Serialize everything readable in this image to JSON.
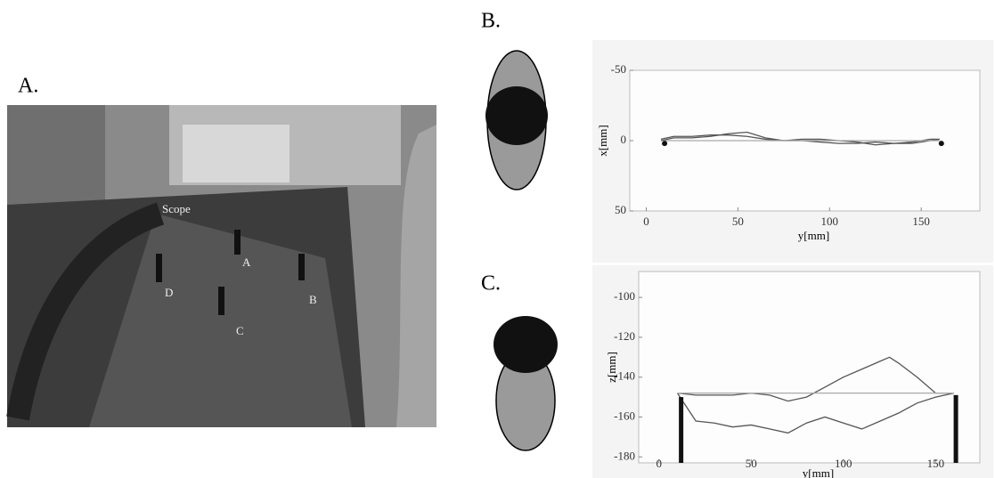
{
  "panels": {
    "a": "A.",
    "b": "B.",
    "c": "C."
  },
  "photo_labels": {
    "scope": "Scope",
    "a": "A",
    "b": "B",
    "c": "C",
    "d": "D"
  },
  "chart_data": [
    {
      "type": "line",
      "xlabel": "y[mm]",
      "ylabel": "x[mm]",
      "xlim": [
        -9,
        182
      ],
      "ylim": [
        50,
        -50
      ],
      "xticks": [
        0,
        50,
        100,
        150
      ],
      "yticks": [
        -50,
        0,
        50
      ],
      "series": [
        {
          "type": "line",
          "color": "#555555",
          "x": [
            8,
            15,
            25,
            35,
            45,
            55,
            65,
            75,
            85,
            95,
            105,
            115,
            125,
            135,
            145,
            155,
            160
          ],
          "values": [
            -1,
            -3,
            -3,
            -4,
            -4,
            -3,
            -1,
            0,
            0,
            1,
            2,
            2,
            1,
            2,
            1,
            -1,
            -1
          ]
        },
        {
          "type": "line",
          "color": "#555555",
          "x": [
            8,
            15,
            25,
            35,
            45,
            55,
            65,
            75,
            85,
            95,
            105,
            115,
            125,
            135,
            145,
            155,
            160
          ],
          "values": [
            0,
            -2,
            -2,
            -3,
            -5,
            -6,
            -2,
            0,
            -1,
            -1,
            0,
            1,
            3,
            2,
            2,
            0,
            -1
          ]
        },
        {
          "type": "line",
          "color": "#aaaaaa",
          "x": [
            10,
            160
          ],
          "values": [
            0,
            0
          ]
        },
        {
          "type": "scatter",
          "color": "#111111",
          "x": [
            10,
            161
          ],
          "values": [
            2,
            2
          ]
        }
      ]
    },
    {
      "type": "line",
      "xlabel": "y[mm]",
      "ylabel": "z[mm]",
      "xlim": [
        -11,
        174
      ],
      "ylim": [
        -183,
        -87
      ],
      "xticks": [
        0,
        50,
        100,
        150
      ],
      "yticks": [
        -100,
        -120,
        -140,
        -160,
        -180
      ],
      "series": [
        {
          "type": "line",
          "color": "#555555",
          "x": [
            10,
            20,
            30,
            40,
            50,
            60,
            70,
            80,
            90,
            100,
            110,
            120,
            125,
            130,
            140,
            150,
            160
          ],
          "values": [
            -148,
            -149,
            -149,
            -149,
            -148,
            -149,
            -152,
            -150,
            -145,
            -140,
            -136,
            -132,
            -130,
            -133,
            -140,
            -148,
            -148
          ]
        },
        {
          "type": "line",
          "color": "#555555",
          "x": [
            10,
            20,
            30,
            40,
            50,
            60,
            70,
            80,
            90,
            100,
            110,
            120,
            125,
            130,
            140,
            150,
            160
          ],
          "values": [
            -148,
            -162,
            -163,
            -165,
            -164,
            -166,
            -168,
            -163,
            -160,
            -163,
            -166,
            -162,
            -160,
            -158,
            -153,
            -150,
            -148
          ]
        },
        {
          "type": "line",
          "color": "#aaaaaa",
          "x": [
            10,
            160
          ],
          "values": [
            -148,
            -148
          ]
        },
        {
          "type": "bar",
          "color": "#111111",
          "x": [
            12,
            161
          ],
          "values": [
            -150,
            -149
          ]
        }
      ]
    }
  ]
}
